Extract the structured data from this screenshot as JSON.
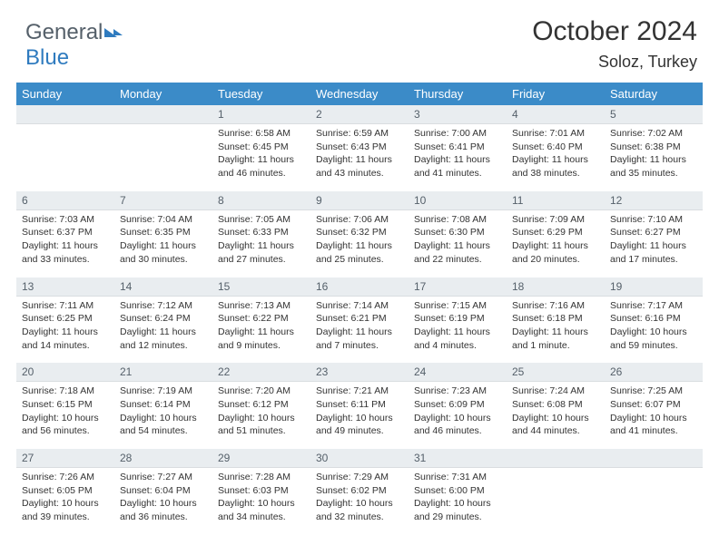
{
  "brand": {
    "part1": "General",
    "part2": "Blue"
  },
  "title": "October 2024",
  "location": "Soloz, Turkey",
  "colors": {
    "header_bg": "#3b8bc8",
    "header_text": "#ffffff",
    "numrow_bg": "#e9edf0",
    "numrow_text": "#55606a",
    "body_text": "#333333",
    "brand_gray": "#55606a",
    "brand_blue": "#2f7bbf"
  },
  "weekdays": [
    "Sunday",
    "Monday",
    "Tuesday",
    "Wednesday",
    "Thursday",
    "Friday",
    "Saturday"
  ],
  "weeks": [
    {
      "nums": [
        "",
        "",
        "1",
        "2",
        "3",
        "4",
        "5"
      ],
      "cells": [
        null,
        null,
        {
          "sr": "Sunrise: 6:58 AM",
          "ss": "Sunset: 6:45 PM",
          "d1": "Daylight: 11 hours",
          "d2": "and 46 minutes."
        },
        {
          "sr": "Sunrise: 6:59 AM",
          "ss": "Sunset: 6:43 PM",
          "d1": "Daylight: 11 hours",
          "d2": "and 43 minutes."
        },
        {
          "sr": "Sunrise: 7:00 AM",
          "ss": "Sunset: 6:41 PM",
          "d1": "Daylight: 11 hours",
          "d2": "and 41 minutes."
        },
        {
          "sr": "Sunrise: 7:01 AM",
          "ss": "Sunset: 6:40 PM",
          "d1": "Daylight: 11 hours",
          "d2": "and 38 minutes."
        },
        {
          "sr": "Sunrise: 7:02 AM",
          "ss": "Sunset: 6:38 PM",
          "d1": "Daylight: 11 hours",
          "d2": "and 35 minutes."
        }
      ]
    },
    {
      "nums": [
        "6",
        "7",
        "8",
        "9",
        "10",
        "11",
        "12"
      ],
      "cells": [
        {
          "sr": "Sunrise: 7:03 AM",
          "ss": "Sunset: 6:37 PM",
          "d1": "Daylight: 11 hours",
          "d2": "and 33 minutes."
        },
        {
          "sr": "Sunrise: 7:04 AM",
          "ss": "Sunset: 6:35 PM",
          "d1": "Daylight: 11 hours",
          "d2": "and 30 minutes."
        },
        {
          "sr": "Sunrise: 7:05 AM",
          "ss": "Sunset: 6:33 PM",
          "d1": "Daylight: 11 hours",
          "d2": "and 27 minutes."
        },
        {
          "sr": "Sunrise: 7:06 AM",
          "ss": "Sunset: 6:32 PM",
          "d1": "Daylight: 11 hours",
          "d2": "and 25 minutes."
        },
        {
          "sr": "Sunrise: 7:08 AM",
          "ss": "Sunset: 6:30 PM",
          "d1": "Daylight: 11 hours",
          "d2": "and 22 minutes."
        },
        {
          "sr": "Sunrise: 7:09 AM",
          "ss": "Sunset: 6:29 PM",
          "d1": "Daylight: 11 hours",
          "d2": "and 20 minutes."
        },
        {
          "sr": "Sunrise: 7:10 AM",
          "ss": "Sunset: 6:27 PM",
          "d1": "Daylight: 11 hours",
          "d2": "and 17 minutes."
        }
      ]
    },
    {
      "nums": [
        "13",
        "14",
        "15",
        "16",
        "17",
        "18",
        "19"
      ],
      "cells": [
        {
          "sr": "Sunrise: 7:11 AM",
          "ss": "Sunset: 6:25 PM",
          "d1": "Daylight: 11 hours",
          "d2": "and 14 minutes."
        },
        {
          "sr": "Sunrise: 7:12 AM",
          "ss": "Sunset: 6:24 PM",
          "d1": "Daylight: 11 hours",
          "d2": "and 12 minutes."
        },
        {
          "sr": "Sunrise: 7:13 AM",
          "ss": "Sunset: 6:22 PM",
          "d1": "Daylight: 11 hours",
          "d2": "and 9 minutes."
        },
        {
          "sr": "Sunrise: 7:14 AM",
          "ss": "Sunset: 6:21 PM",
          "d1": "Daylight: 11 hours",
          "d2": "and 7 minutes."
        },
        {
          "sr": "Sunrise: 7:15 AM",
          "ss": "Sunset: 6:19 PM",
          "d1": "Daylight: 11 hours",
          "d2": "and 4 minutes."
        },
        {
          "sr": "Sunrise: 7:16 AM",
          "ss": "Sunset: 6:18 PM",
          "d1": "Daylight: 11 hours",
          "d2": "and 1 minute."
        },
        {
          "sr": "Sunrise: 7:17 AM",
          "ss": "Sunset: 6:16 PM",
          "d1": "Daylight: 10 hours",
          "d2": "and 59 minutes."
        }
      ]
    },
    {
      "nums": [
        "20",
        "21",
        "22",
        "23",
        "24",
        "25",
        "26"
      ],
      "cells": [
        {
          "sr": "Sunrise: 7:18 AM",
          "ss": "Sunset: 6:15 PM",
          "d1": "Daylight: 10 hours",
          "d2": "and 56 minutes."
        },
        {
          "sr": "Sunrise: 7:19 AM",
          "ss": "Sunset: 6:14 PM",
          "d1": "Daylight: 10 hours",
          "d2": "and 54 minutes."
        },
        {
          "sr": "Sunrise: 7:20 AM",
          "ss": "Sunset: 6:12 PM",
          "d1": "Daylight: 10 hours",
          "d2": "and 51 minutes."
        },
        {
          "sr": "Sunrise: 7:21 AM",
          "ss": "Sunset: 6:11 PM",
          "d1": "Daylight: 10 hours",
          "d2": "and 49 minutes."
        },
        {
          "sr": "Sunrise: 7:23 AM",
          "ss": "Sunset: 6:09 PM",
          "d1": "Daylight: 10 hours",
          "d2": "and 46 minutes."
        },
        {
          "sr": "Sunrise: 7:24 AM",
          "ss": "Sunset: 6:08 PM",
          "d1": "Daylight: 10 hours",
          "d2": "and 44 minutes."
        },
        {
          "sr": "Sunrise: 7:25 AM",
          "ss": "Sunset: 6:07 PM",
          "d1": "Daylight: 10 hours",
          "d2": "and 41 minutes."
        }
      ]
    },
    {
      "nums": [
        "27",
        "28",
        "29",
        "30",
        "31",
        "",
        ""
      ],
      "cells": [
        {
          "sr": "Sunrise: 7:26 AM",
          "ss": "Sunset: 6:05 PM",
          "d1": "Daylight: 10 hours",
          "d2": "and 39 minutes."
        },
        {
          "sr": "Sunrise: 7:27 AM",
          "ss": "Sunset: 6:04 PM",
          "d1": "Daylight: 10 hours",
          "d2": "and 36 minutes."
        },
        {
          "sr": "Sunrise: 7:28 AM",
          "ss": "Sunset: 6:03 PM",
          "d1": "Daylight: 10 hours",
          "d2": "and 34 minutes."
        },
        {
          "sr": "Sunrise: 7:29 AM",
          "ss": "Sunset: 6:02 PM",
          "d1": "Daylight: 10 hours",
          "d2": "and 32 minutes."
        },
        {
          "sr": "Sunrise: 7:31 AM",
          "ss": "Sunset: 6:00 PM",
          "d1": "Daylight: 10 hours",
          "d2": "and 29 minutes."
        },
        null,
        null
      ]
    }
  ]
}
